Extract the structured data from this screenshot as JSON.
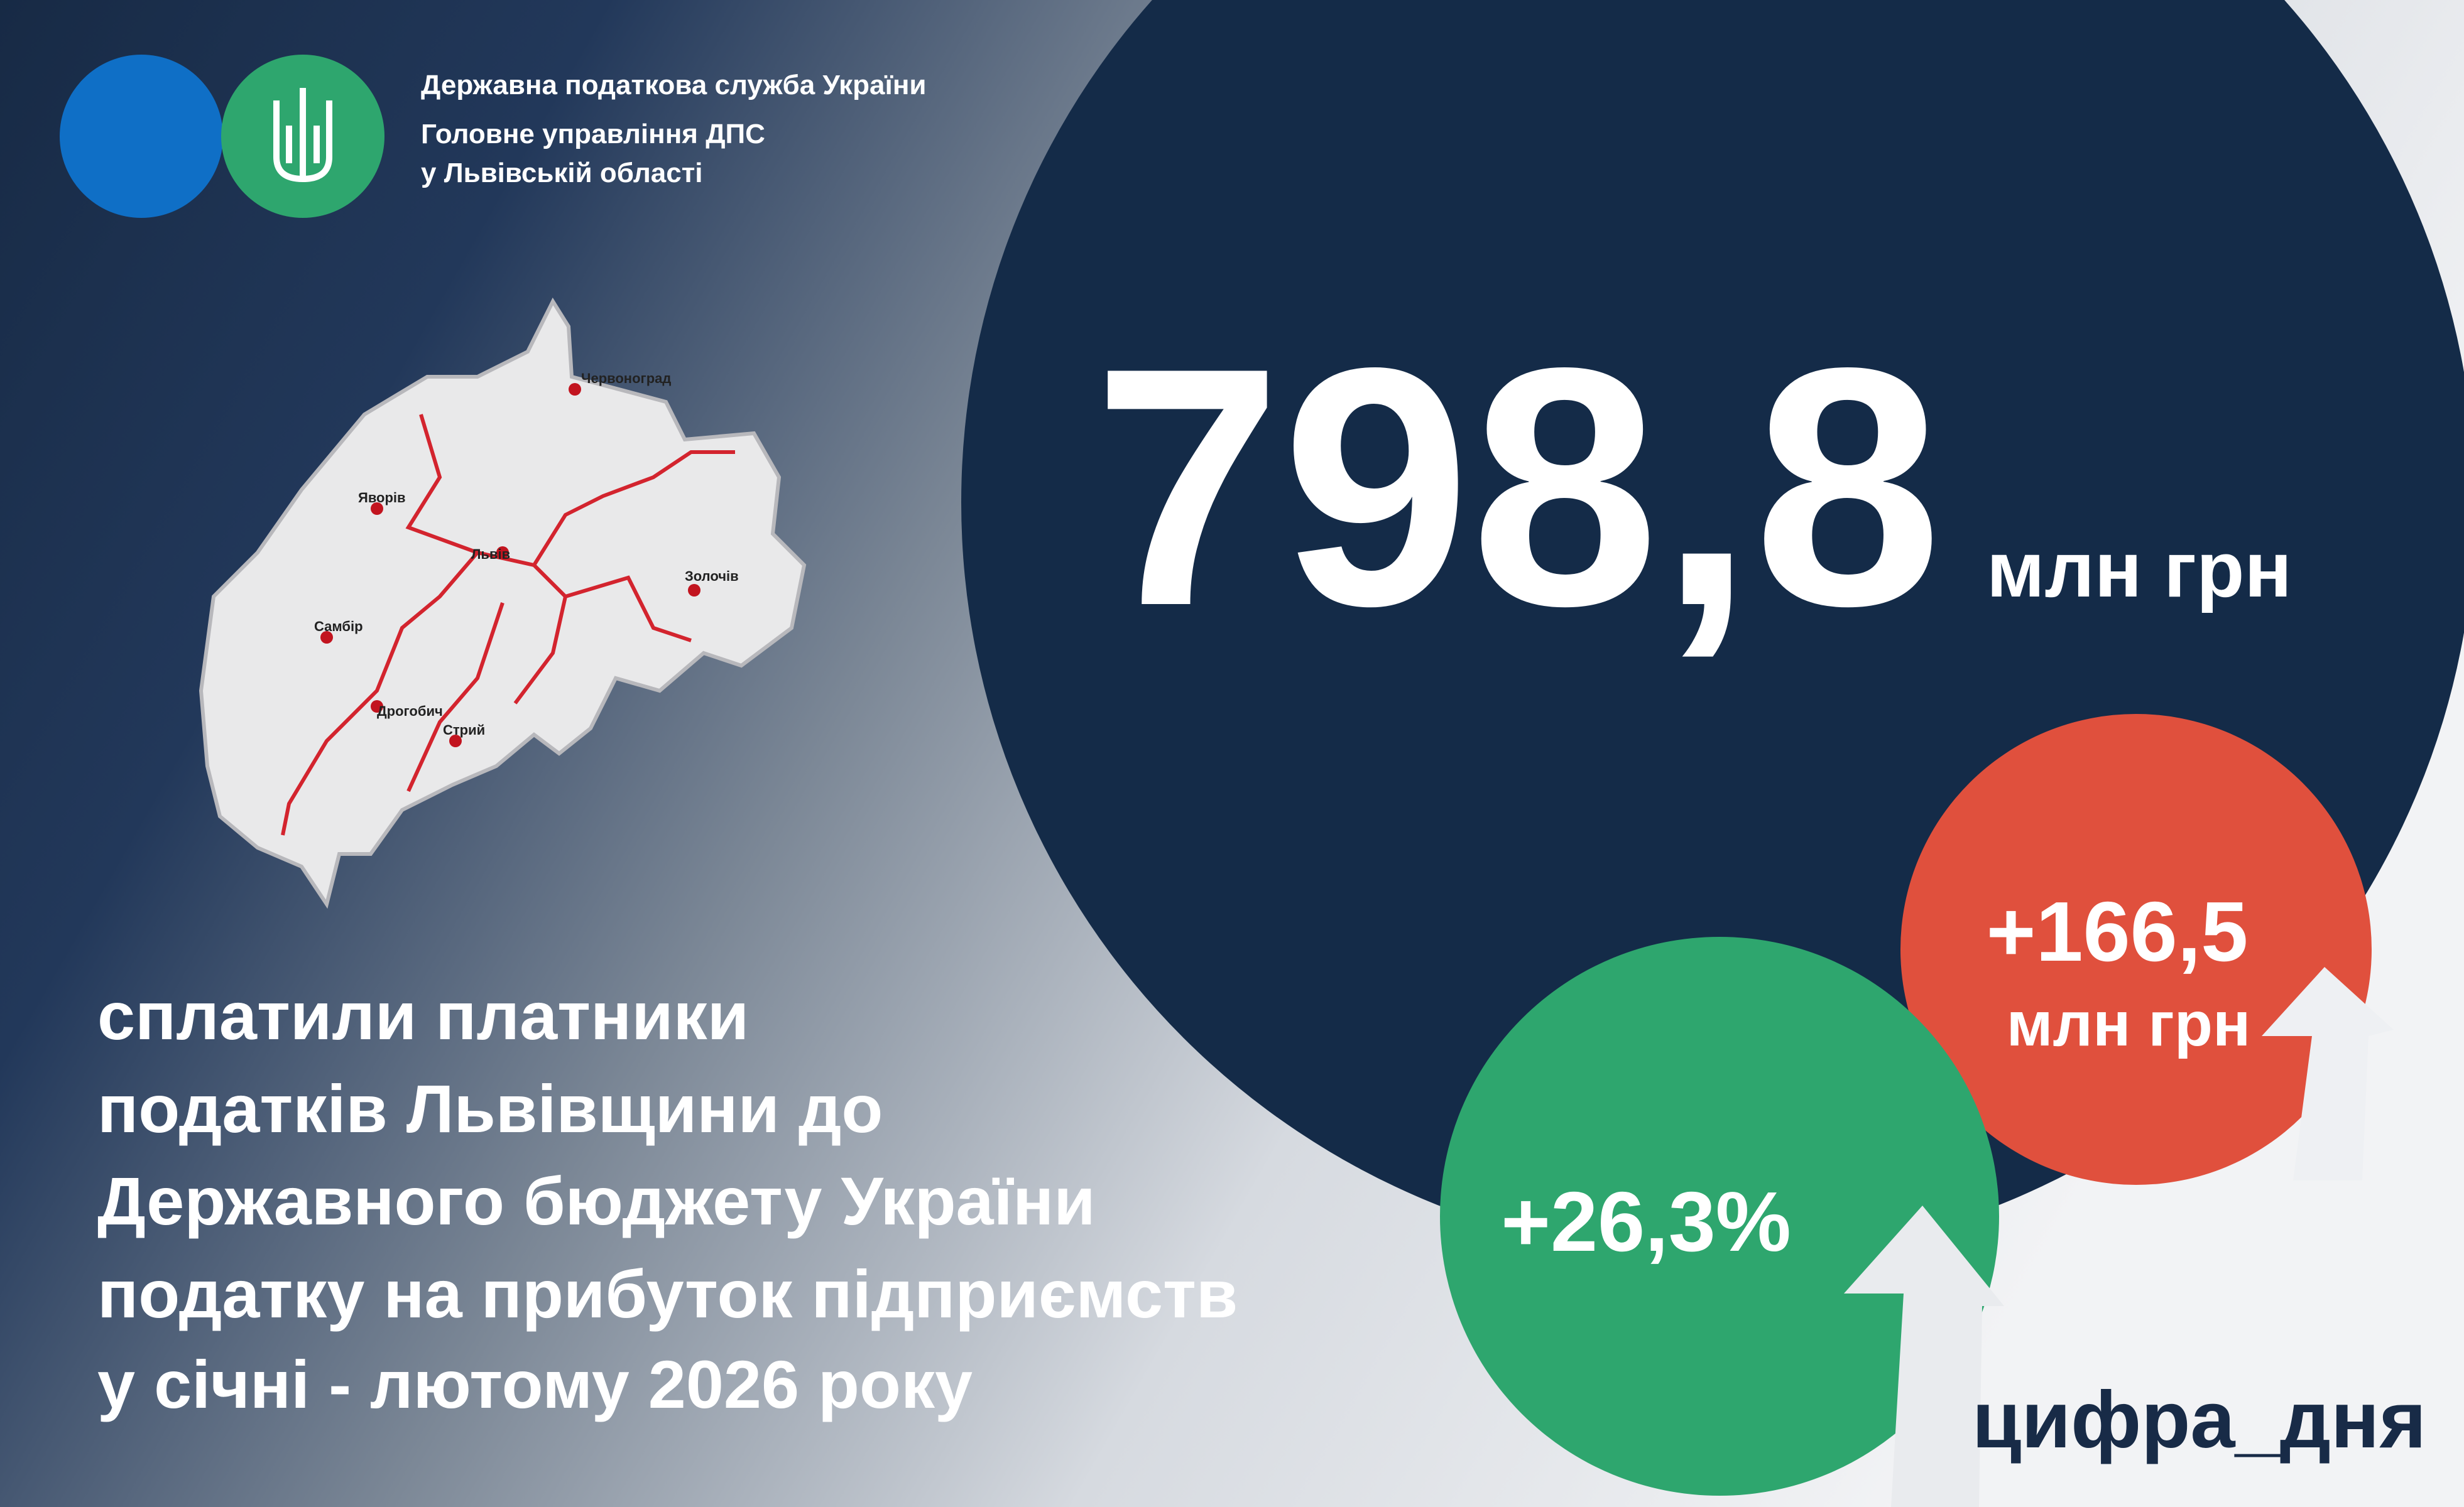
{
  "header": {
    "line1": "Державна податкова служба України",
    "line2": "Головне управління ДПС",
    "line3": "у Львівській області"
  },
  "map": {
    "cities": [
      "Червоноград",
      "Яворів",
      "Львів",
      "Золочів",
      "Самбір",
      "Дрогобич",
      "Стрий"
    ]
  },
  "main": {
    "value": "798,8",
    "unit": "млн грн"
  },
  "increase": {
    "value": "+166,5",
    "unit": "млн грн"
  },
  "growth": {
    "value": "+26,3%"
  },
  "description": [
    "сплатили платники",
    "податків Львівщини до",
    "Державного бюджету України",
    "податку на прибуток підприємств",
    "у січні - лютому 2026 року"
  ],
  "hashtag": "цифра_дня"
}
